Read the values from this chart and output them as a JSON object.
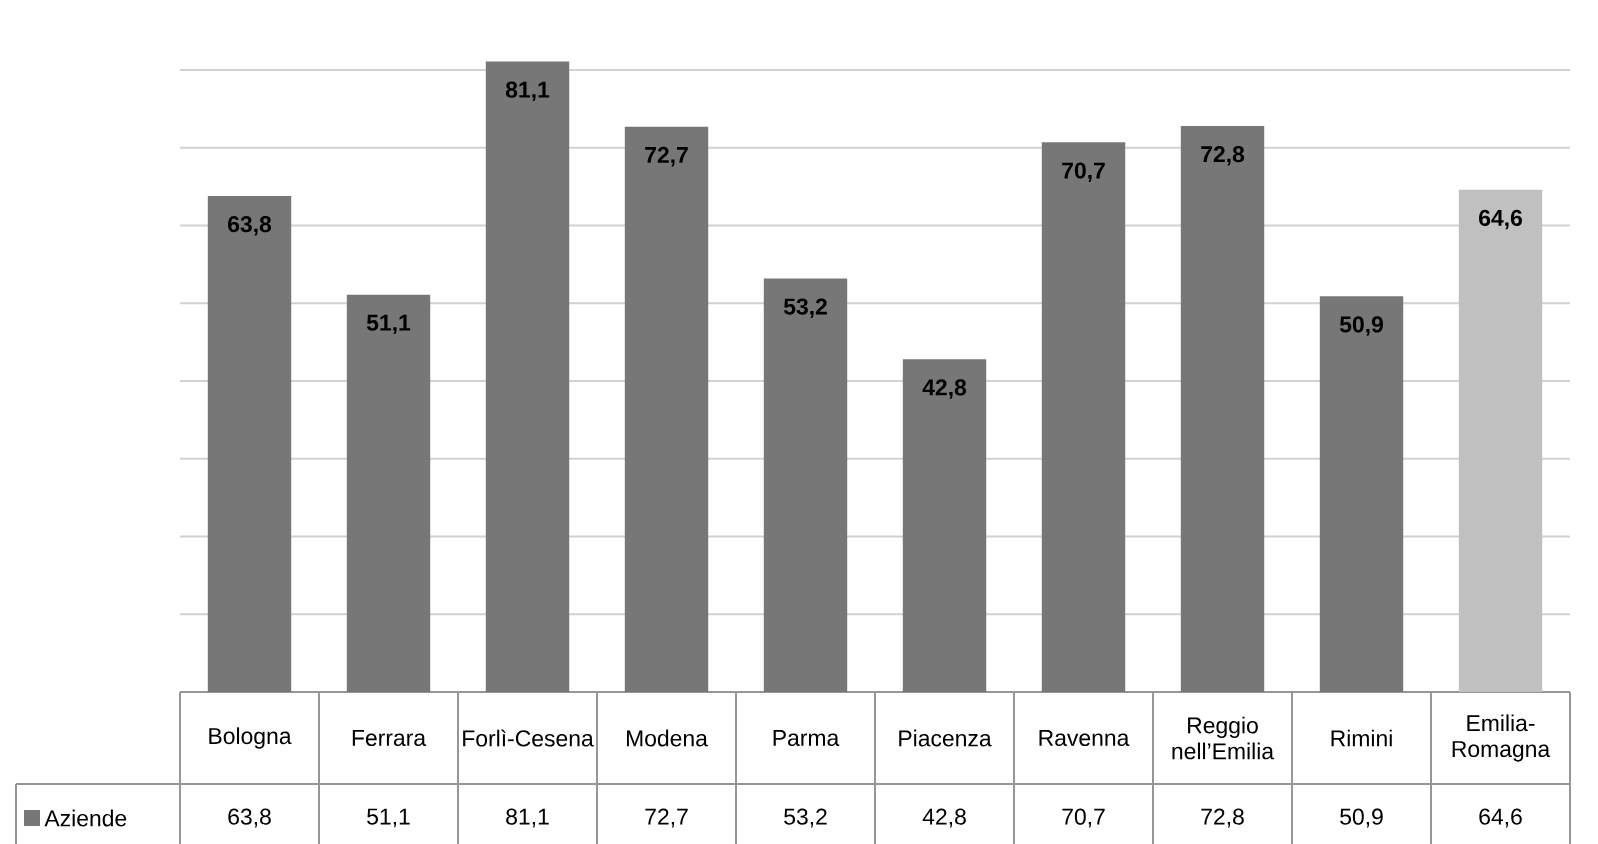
{
  "chart_data": {
    "type": "bar",
    "categories": [
      "Bologna",
      "Ferrara",
      "Forlì-Cesena",
      "Modena",
      "Parma",
      "Piacenza",
      "Ravenna",
      "Reggio nell’Emilia",
      "Rimini",
      "Emilia-Romagna"
    ],
    "series": [
      {
        "name": "Aziende",
        "color": "#777777",
        "colors": [
          "#777777",
          "#777777",
          "#777777",
          "#777777",
          "#777777",
          "#777777",
          "#777777",
          "#777777",
          "#777777",
          "#c0c0c0"
        ],
        "values": [
          63.8,
          51.1,
          81.1,
          72.7,
          53.2,
          42.8,
          70.7,
          72.8,
          50.9,
          64.6
        ],
        "value_labels": [
          "63,8",
          "51,1",
          "81,1",
          "72,7",
          "53,2",
          "42,8",
          "70,7",
          "72,8",
          "50,9",
          "64,6"
        ]
      }
    ],
    "grid": "y",
    "tick_labels": "x",
    "legend": "bottom left"
  }
}
